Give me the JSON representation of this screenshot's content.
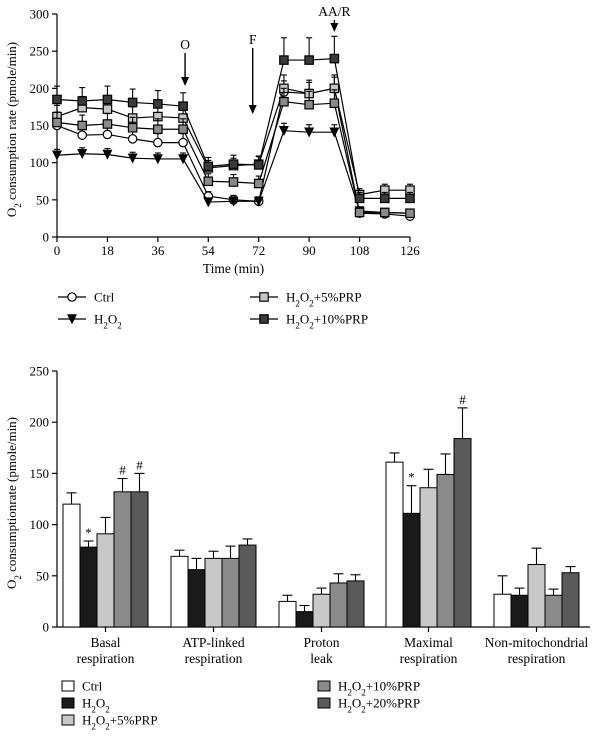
{
  "chart_data": [
    {
      "type": "line",
      "ylabel": "O2 consumption rate (pmole/min)",
      "xlabel": "Time (min)",
      "xlim": [
        0,
        126
      ],
      "ylim": [
        0,
        300
      ],
      "xticks": [
        0,
        18,
        36,
        54,
        72,
        90,
        108,
        126
      ],
      "yticks": [
        0,
        50,
        100,
        150,
        200,
        250,
        300
      ],
      "x": [
        0,
        9,
        18,
        27,
        36,
        45,
        54,
        63,
        72,
        81,
        90,
        99,
        108,
        117,
        126
      ],
      "injections": [
        {
          "label": "O",
          "x": 45
        },
        {
          "label": "F",
          "x": 72
        },
        {
          "label": "AA/R",
          "x": 99
        }
      ],
      "series": [
        {
          "name": "Ctrl",
          "marker": "circle",
          "fill": "#ffffff",
          "values": [
            150,
            137,
            138,
            132,
            127,
            127,
            55,
            50,
            48,
            195,
            193,
            200,
            32,
            31,
            28
          ],
          "errors": [
            12,
            12,
            12,
            12,
            12,
            12,
            6,
            6,
            6,
            15,
            15,
            15,
            5,
            5,
            5
          ]
        },
        {
          "name": "H2O2",
          "marker": "triangle-down",
          "fill": "#000000",
          "values": [
            110,
            112,
            111,
            106,
            105,
            105,
            47,
            48,
            48,
            143,
            141,
            141,
            35,
            33,
            32
          ],
          "errors": [
            8,
            8,
            8,
            8,
            8,
            8,
            5,
            5,
            5,
            10,
            10,
            10,
            4,
            4,
            4
          ]
        },
        {
          "name": "H2O2+5%PRP",
          "marker": "square",
          "fill": "#c8c8c8",
          "values": [
            162,
            174,
            172,
            160,
            162,
            160,
            93,
            96,
            98,
            200,
            193,
            200,
            57,
            63,
            63
          ],
          "errors": [
            15,
            15,
            15,
            15,
            15,
            15,
            10,
            10,
            10,
            18,
            18,
            18,
            8,
            8,
            8
          ]
        },
        {
          "name": "H2O2+10%PRP",
          "marker": "square",
          "fill": "#8a8a8a",
          "values": [
            154,
            150,
            152,
            147,
            145,
            145,
            75,
            74,
            72,
            182,
            178,
            180,
            33,
            33,
            32
          ],
          "errors": [
            14,
            14,
            14,
            14,
            14,
            14,
            10,
            10,
            10,
            18,
            18,
            18,
            5,
            5,
            5
          ]
        },
        {
          "name": "H2O2+10%PRP",
          "marker": "square",
          "fill": "#3a3a3a",
          "values": [
            185,
            183,
            185,
            181,
            179,
            176,
            95,
            98,
            97,
            238,
            238,
            240,
            52,
            52,
            52
          ],
          "errors": [
            18,
            18,
            18,
            18,
            18,
            18,
            12,
            12,
            12,
            30,
            30,
            30,
            8,
            8,
            8
          ]
        }
      ]
    },
    {
      "type": "bar",
      "ylabel": "O2 consumptionrate (pmole/min)",
      "ylim": [
        0,
        250
      ],
      "yticks": [
        0,
        50,
        100,
        150,
        200,
        250
      ],
      "categories": [
        [
          "Basal",
          "respiration"
        ],
        [
          "ATP-linked",
          "respiration"
        ],
        [
          "Proton",
          "leak"
        ],
        [
          "Maximal",
          "respiration"
        ],
        [
          "Non-mitochondrial",
          "respiration"
        ]
      ],
      "series": [
        {
          "name": "Ctrl",
          "color": "#ffffff",
          "values": [
            120,
            69,
            25,
            161,
            32
          ],
          "errors": [
            11,
            6,
            6,
            9,
            18
          ],
          "marks": [
            "",
            "",
            "",
            "",
            ""
          ]
        },
        {
          "name": "H2O2",
          "color": "#1a1a1a",
          "values": [
            78,
            56,
            15,
            111,
            31
          ],
          "errors": [
            6,
            11,
            6,
            27,
            7
          ],
          "marks": [
            "*",
            "",
            "",
            "*",
            ""
          ]
        },
        {
          "name": "H2O2+5%PRP",
          "color": "#c8c8c8",
          "values": [
            91,
            67,
            32,
            136,
            61
          ],
          "errors": [
            16,
            7,
            6,
            18,
            16
          ],
          "marks": [
            "",
            "",
            "",
            "",
            ""
          ]
        },
        {
          "name": "H2O2+10%PRP",
          "color": "#8a8a8a",
          "values": [
            132,
            67,
            43,
            149,
            31
          ],
          "errors": [
            13,
            12,
            9,
            20,
            6
          ],
          "marks": [
            "#",
            "",
            "",
            "",
            ""
          ]
        },
        {
          "name": "H2O2+20%PRP",
          "color": "#5a5a5a",
          "values": [
            132,
            80,
            45,
            184,
            53
          ],
          "errors": [
            18,
            6,
            6,
            30,
            6
          ],
          "marks": [
            "#",
            "",
            "",
            "#",
            ""
          ]
        }
      ]
    }
  ]
}
